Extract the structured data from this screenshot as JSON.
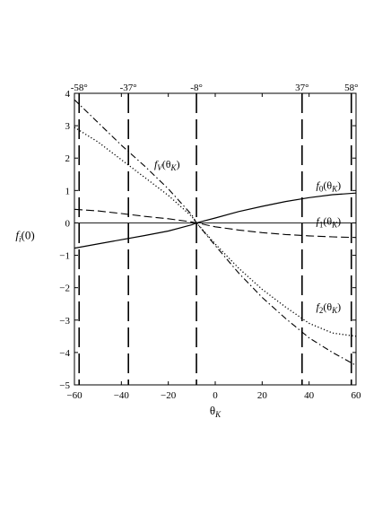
{
  "chart_data": {
    "type": "line",
    "title": "",
    "xlabel": "θ_K",
    "ylabel": "f_i(0)",
    "xlim": [
      -60,
      60
    ],
    "ylim": [
      -5,
      4
    ],
    "grid": false,
    "legend": "none",
    "x_ticks": [
      -60,
      -40,
      -20,
      0,
      20,
      40,
      60
    ],
    "y_ticks": [
      -5,
      -4,
      -3,
      -2,
      -1,
      0,
      1,
      2,
      3,
      4
    ],
    "top_markers": [
      {
        "x": -58,
        "label": "-58°"
      },
      {
        "x": -37,
        "label": "-37°"
      },
      {
        "x": -8,
        "label": "-8°"
      },
      {
        "x": 37,
        "label": "37°"
      },
      {
        "x": 58,
        "label": "58°"
      }
    ],
    "series": [
      {
        "name": "f_0(θ_K)",
        "style": "solid",
        "x": [
          -60,
          -50,
          -40,
          -30,
          -20,
          -10,
          -8,
          0,
          10,
          20,
          30,
          40,
          50,
          60
        ],
        "y": [
          -0.78,
          -0.65,
          -0.52,
          -0.39,
          -0.25,
          -0.06,
          0.0,
          0.15,
          0.35,
          0.51,
          0.66,
          0.78,
          0.87,
          0.92
        ]
      },
      {
        "name": "f_1(θ_K)",
        "style": "dashed",
        "x": [
          -60,
          -50,
          -40,
          -30,
          -20,
          -10,
          -8,
          0,
          10,
          20,
          30,
          40,
          50,
          60
        ],
        "y": [
          0.42,
          0.37,
          0.29,
          0.2,
          0.13,
          0.03,
          0.0,
          -0.12,
          -0.22,
          -0.3,
          -0.36,
          -0.4,
          -0.43,
          -0.45
        ]
      },
      {
        "name": "f_V(θ_K)",
        "style": "dashdot",
        "x": [
          -60,
          -50,
          -40,
          -30,
          -20,
          -10,
          -8,
          0,
          10,
          20,
          30,
          40,
          50,
          60
        ],
        "y": [
          3.8,
          3.1,
          2.4,
          1.75,
          1.05,
          0.25,
          0.0,
          -0.7,
          -1.55,
          -2.3,
          -2.95,
          -3.55,
          -4.0,
          -4.4
        ]
      },
      {
        "name": "f_2(θ_K)",
        "style": "dotted",
        "x": [
          -60,
          -50,
          -40,
          -30,
          -20,
          -10,
          -8,
          0,
          10,
          20,
          30,
          40,
          50,
          60
        ],
        "y": [
          2.95,
          2.5,
          1.95,
          1.4,
          0.85,
          0.2,
          0.0,
          -0.65,
          -1.4,
          -2.05,
          -2.6,
          -3.1,
          -3.4,
          -3.5
        ]
      }
    ],
    "curve_labels": [
      {
        "series": "f_V(θ_K)",
        "main": "f",
        "sub": "V",
        "arg": "(θ",
        "argsub": "K",
        "close": ")",
        "at": [
          -26,
          1.7
        ]
      },
      {
        "series": "f_0(θ_K)",
        "main": "f",
        "sub": "0",
        "arg": "(θ",
        "argsub": "K",
        "close": ")",
        "at": [
          43,
          1.05
        ]
      },
      {
        "series": "f_1(θ_K)",
        "main": "f",
        "sub": "1",
        "arg": "(θ",
        "argsub": "K",
        "close": ")",
        "at": [
          43,
          -0.05
        ]
      },
      {
        "series": "f_2(θ_K)",
        "main": "f",
        "sub": "2",
        "arg": "(θ",
        "argsub": "K",
        "close": ")",
        "at": [
          43,
          -2.7
        ]
      }
    ]
  }
}
